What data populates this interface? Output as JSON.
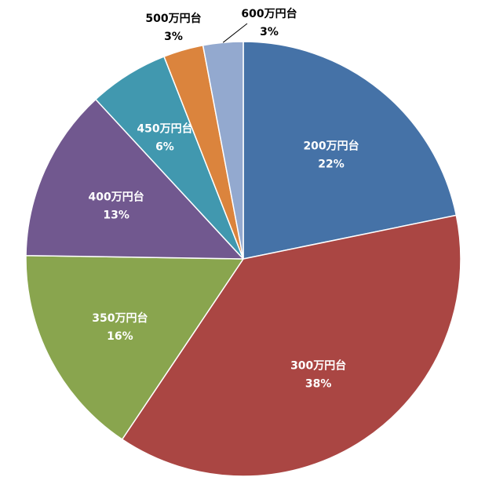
{
  "chart_data": {
    "type": "pie",
    "start": "12 o'clock",
    "direction": "clockwise",
    "slices": [
      {
        "category": "200万円台",
        "value": 22,
        "percent_label": "22%",
        "color": "#4572A7",
        "label_position": "inside"
      },
      {
        "category": "300万円台",
        "value": 38,
        "percent_label": "38%",
        "color": "#AA4643",
        "label_position": "inside"
      },
      {
        "category": "350万円台",
        "value": 16,
        "percent_label": "16%",
        "color": "#89A54E",
        "label_position": "inside"
      },
      {
        "category": "400万円台",
        "value": 13,
        "percent_label": "13%",
        "color": "#71588F",
        "label_position": "inside"
      },
      {
        "category": "450万円台",
        "value": 6,
        "percent_label": "6%",
        "color": "#4198AF",
        "label_position": "inside"
      },
      {
        "category": "500万円台",
        "value": 3,
        "percent_label": "3%",
        "color": "#DB843D",
        "label_position": "outside"
      },
      {
        "category": "600万円台",
        "value": 3,
        "percent_label": "3%",
        "color": "#93A9CF",
        "label_position": "outside"
      }
    ]
  }
}
